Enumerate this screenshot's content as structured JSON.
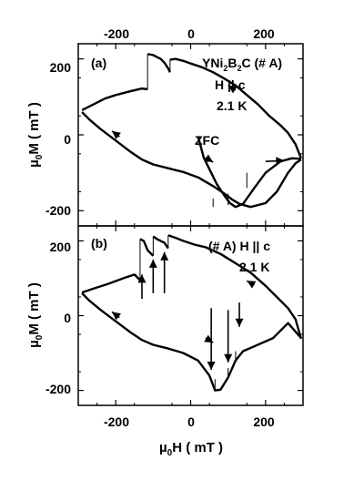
{
  "chart_data": [
    {
      "type": "line",
      "panel_label": "(a)",
      "annotations": {
        "sample": "YNi",
        "sample_sub": "2",
        "sample_mid": "B",
        "sample_sub2": "2",
        "sample_tail": "C (# A)",
        "field_dir": "H || c",
        "temperature": "2.1 K",
        "zfc": "ZFC"
      },
      "xlim": [
        -300,
        300
      ],
      "ylim": [
        -240,
        240
      ],
      "x_ticks": [
        -200,
        0,
        200
      ],
      "y_ticks": [
        -200,
        0,
        200
      ],
      "ylabel_base": "µ",
      "ylabel_sub": "0",
      "ylabel_tail": "M ( mT )",
      "series": [
        {
          "points": [
            [
              -290,
              60
            ],
            [
              -270,
              40
            ],
            [
              -240,
              15
            ],
            [
              -200,
              -15
            ],
            [
              -160,
              -45
            ],
            [
              -130,
              -65
            ],
            [
              -100,
              -78
            ],
            [
              -60,
              -88
            ],
            [
              -20,
              -98
            ],
            [
              20,
              -112
            ],
            [
              60,
              -135
            ],
            [
              90,
              -155
            ],
            [
              110,
              -170
            ],
            [
              130,
              -182
            ],
            [
              160,
              -190
            ],
            [
              200,
              -180
            ],
            [
              230,
              -150
            ],
            [
              260,
              -100
            ],
            [
              280,
              -75
            ],
            [
              295,
              -65
            ]
          ]
        },
        {
          "points": [
            [
              295,
              -62
            ],
            [
              280,
              -25
            ],
            [
              260,
              5
            ],
            [
              240,
              25
            ],
            [
              210,
              50
            ],
            [
              180,
              80
            ],
            [
              150,
              105
            ],
            [
              120,
              130
            ],
            [
              90,
              148
            ],
            [
              60,
              165
            ],
            [
              30,
              178
            ],
            [
              0,
              188
            ],
            [
              -20,
              195
            ],
            [
              -40,
              200
            ],
            [
              -55,
              198
            ]
          ]
        },
        {
          "points": [
            [
              -55,
              165
            ],
            [
              -60,
              175
            ],
            [
              -70,
              190
            ],
            [
              -80,
              200
            ],
            [
              -90,
              205
            ],
            [
              -100,
              210
            ],
            [
              -115,
              213
            ]
          ]
        },
        {
          "points": [
            [
              -115,
              120
            ],
            [
              -130,
              122
            ],
            [
              -160,
              115
            ],
            [
              -200,
              105
            ],
            [
              -230,
              95
            ],
            [
              -260,
              80
            ],
            [
              -290,
              65
            ]
          ]
        },
        {
          "points": [
            [
              20,
              -5
            ],
            [
              35,
              -60
            ],
            [
              55,
              -100
            ],
            [
              70,
              -130
            ],
            [
              90,
              -160
            ],
            [
              105,
              -180
            ],
            [
              120,
              -190
            ],
            [
              140,
              -182
            ],
            [
              170,
              -140
            ],
            [
              200,
              -100
            ],
            [
              240,
              -70
            ],
            [
              270,
              -62
            ],
            [
              295,
              -63
            ]
          ]
        }
      ],
      "jumps": [
        {
          "x": -55,
          "y_from": 165,
          "y_to": 198
        },
        {
          "x": -115,
          "y_from": 120,
          "y_to": 213
        },
        {
          "x": 60,
          "y_from": -190,
          "y_to": -168
        },
        {
          "x": 100,
          "y_from": -185,
          "y_to": -155
        },
        {
          "x": 150,
          "y_from": -140,
          "y_to": -100
        }
      ],
      "arrows": [
        {
          "from": [
            40,
            -60
          ],
          "to": [
            60,
            -72
          ]
        },
        {
          "from": [
            120,
            118
          ],
          "to": [
            100,
            130
          ]
        },
        {
          "from": [
            -190,
            -5
          ],
          "to": [
            -210,
            10
          ]
        },
        {
          "from": [
            200,
            -70
          ],
          "to": [
            250,
            -68
          ]
        }
      ]
    },
    {
      "type": "line",
      "panel_label": "(b)",
      "annotations": {
        "sample": "(# A) H || c",
        "temperature": "2.1 K"
      },
      "xlim": [
        -300,
        300
      ],
      "ylim": [
        -240,
        240
      ],
      "x_ticks": [
        -200,
        0,
        200
      ],
      "y_ticks": [
        -200,
        0,
        200
      ],
      "xlabel_base": "µ",
      "xlabel_sub": "0",
      "xlabel_tail": "H ( mT )",
      "ylabel_base": "µ",
      "ylabel_sub": "0",
      "ylabel_tail": "M ( mT )",
      "series": [
        {
          "points": [
            [
              -290,
              60
            ],
            [
              -270,
              40
            ],
            [
              -240,
              15
            ],
            [
              -200,
              -15
            ],
            [
              -160,
              -45
            ],
            [
              -130,
              -65
            ],
            [
              -100,
              -78
            ],
            [
              -60,
              -88
            ],
            [
              -20,
              -100
            ],
            [
              20,
              -120
            ],
            [
              50,
              -160
            ],
            [
              65,
              -200
            ],
            [
              80,
              -198
            ],
            [
              100,
              -165
            ],
            [
              120,
              -120
            ],
            [
              140,
              -95
            ],
            [
              170,
              -82
            ],
            [
              220,
              -60
            ],
            [
              260,
              -20
            ],
            [
              295,
              -60
            ]
          ]
        },
        {
          "points": [
            [
              295,
              -62
            ],
            [
              280,
              -10
            ],
            [
              260,
              20
            ],
            [
              230,
              50
            ],
            [
              200,
              80
            ],
            [
              160,
              115
            ],
            [
              120,
              140
            ],
            [
              80,
              165
            ],
            [
              40,
              183
            ],
            [
              10,
              190
            ],
            [
              -20,
              200
            ],
            [
              -40,
              208
            ],
            [
              -60,
              215
            ]
          ]
        },
        {
          "points": [
            [
              -60,
              180
            ],
            [
              -70,
              195
            ],
            [
              -90,
              205
            ],
            [
              -100,
              212
            ]
          ]
        },
        {
          "points": [
            [
              -100,
              160
            ],
            [
              -115,
              175
            ],
            [
              -125,
              200
            ],
            [
              -135,
              205
            ]
          ]
        },
        {
          "points": [
            [
              -135,
              95
            ],
            [
              -150,
              110
            ],
            [
              -180,
              100
            ],
            [
              -220,
              85
            ],
            [
              -260,
              72
            ],
            [
              -290,
              62
            ]
          ]
        }
      ],
      "jumps": [
        {
          "x": -60,
          "y_from": 180,
          "y_to": 215
        },
        {
          "x": -100,
          "y_from": 160,
          "y_to": 212
        },
        {
          "x": -135,
          "y_from": 95,
          "y_to": 205
        },
        {
          "x": 65,
          "y_from": -200,
          "y_to": -170
        },
        {
          "x": 100,
          "y_from": -165,
          "y_to": -140
        },
        {
          "x": 120,
          "y_from": -120,
          "y_to": -95
        }
      ],
      "arrows": [
        {
          "from": [
            -130,
            45
          ],
          "to": [
            -130,
            110
          ]
        },
        {
          "from": [
            -100,
            60
          ],
          "to": [
            -100,
            150
          ]
        },
        {
          "from": [
            -70,
            60
          ],
          "to": [
            -70,
            170
          ]
        },
        {
          "from": [
            55,
            20
          ],
          "to": [
            55,
            -145
          ]
        },
        {
          "from": [
            100,
            15
          ],
          "to": [
            100,
            -125
          ]
        },
        {
          "from": [
            130,
            35
          ],
          "to": [
            130,
            -30
          ]
        },
        {
          "from": [
            40,
            -60
          ],
          "to": [
            60,
            -72
          ]
        },
        {
          "from": [
            -190,
            -5
          ],
          "to": [
            -210,
            10
          ]
        },
        {
          "from": [
            170,
            82
          ],
          "to": [
            150,
            93
          ]
        }
      ]
    }
  ],
  "top_axis_ticks": [
    "-200",
    "0",
    "200"
  ],
  "bottom_axis_ticks": [
    "-200",
    "0",
    "200"
  ],
  "panel_a_yticks": [
    "200",
    "0",
    "-200"
  ],
  "panel_b_yticks": [
    "200",
    "0",
    "-200"
  ]
}
